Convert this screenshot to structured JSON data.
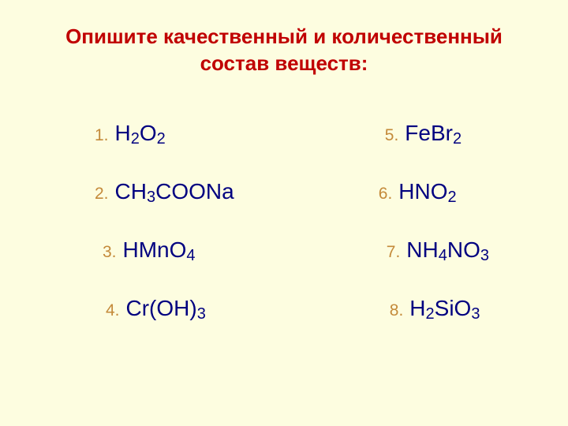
{
  "title_line1": "Опишите качественный и количественный",
  "title_line2": "состав веществ:",
  "colors": {
    "background": "#fdfde0",
    "title": "#c00000",
    "number": "#c48a3a",
    "formula": "#000080"
  },
  "typography": {
    "title_fontsize": 26,
    "number_fontsize": 21,
    "formula_fontsize": 28,
    "subscript_fontsize": 20,
    "font_family": "Arial"
  },
  "left_column": [
    {
      "num": "1.",
      "parts": [
        {
          "t": "H"
        },
        {
          "t": "2",
          "sub": true
        },
        {
          "t": "O"
        },
        {
          "t": "2",
          "sub": true
        }
      ]
    },
    {
      "num": "2.",
      "parts": [
        {
          "t": "CH"
        },
        {
          "t": "3",
          "sub": true
        },
        {
          "t": "COONa"
        }
      ]
    },
    {
      "num": "3.",
      "parts": [
        {
          "t": "HMnO"
        },
        {
          "t": "4",
          "sub": true
        }
      ]
    },
    {
      "num": "4.",
      "parts": [
        {
          "t": "Cr(OH)"
        },
        {
          "t": "3",
          "sub": true
        }
      ]
    }
  ],
  "right_column": [
    {
      "num": "5.",
      "parts": [
        {
          "t": "FeBr"
        },
        {
          "t": "2",
          "sub": true
        }
      ]
    },
    {
      "num": "6.",
      "parts": [
        {
          "t": "HNO"
        },
        {
          "t": "2",
          "sub": true
        }
      ]
    },
    {
      "num": "7.",
      "parts": [
        {
          "t": "NH"
        },
        {
          "t": "4",
          "sub": true
        },
        {
          "t": "NO"
        },
        {
          "t": "3",
          "sub": true
        }
      ]
    },
    {
      "num": "8.",
      "parts": [
        {
          "t": "H"
        },
        {
          "t": "2",
          "sub": true
        },
        {
          "t": "SiO"
        },
        {
          "t": "3",
          "sub": true
        }
      ]
    }
  ],
  "left_indents": [
    0,
    0,
    10,
    14
  ],
  "right_indents": [
    0,
    -8,
    2,
    6
  ]
}
